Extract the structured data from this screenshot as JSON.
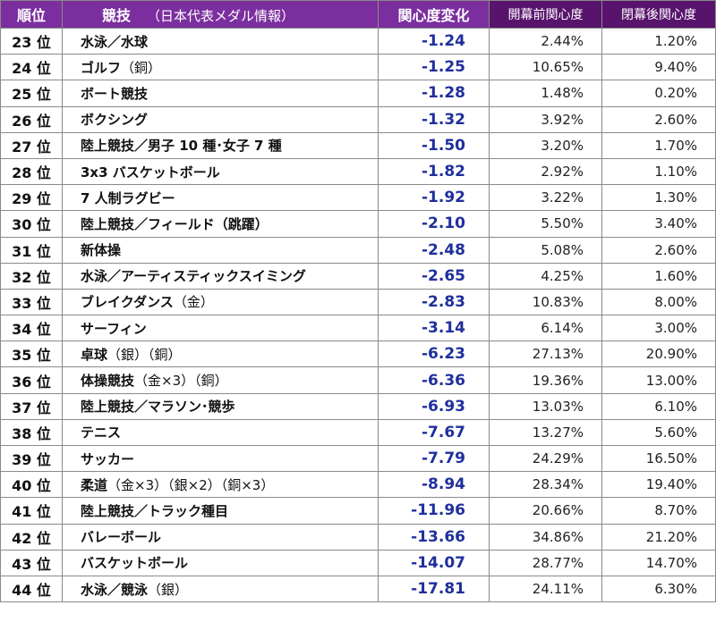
{
  "header": {
    "rank": "順位",
    "sport": "競技",
    "sport_note": "（日本代表メダル情報）",
    "change": "関心度変化",
    "before": "開幕前関心度",
    "after": "閉幕後関心度"
  },
  "colors": {
    "header_purple": "#7b2f9e",
    "header_dark_purple": "#58146c",
    "change_blue": "#1f2f9c"
  },
  "rows": [
    {
      "rank": "23 位",
      "sport": "水泳／水球",
      "medal": "",
      "change": "-1.24",
      "before": "2.44%",
      "after": "1.20%"
    },
    {
      "rank": "24 位",
      "sport": "ゴルフ",
      "medal": "（銅）",
      "change": "-1.25",
      "before": "10.65%",
      "after": "9.40%"
    },
    {
      "rank": "25 位",
      "sport": "ボート競技",
      "medal": "",
      "change": "-1.28",
      "before": "1.48%",
      "after": "0.20%"
    },
    {
      "rank": "26 位",
      "sport": "ボクシング",
      "medal": "",
      "change": "-1.32",
      "before": "3.92%",
      "after": "2.60%"
    },
    {
      "rank": "27 位",
      "sport": "陸上競技／男子 10 種･女子 7 種",
      "medal": "",
      "change": "-1.50",
      "before": "3.20%",
      "after": "1.70%"
    },
    {
      "rank": "28 位",
      "sport": "3x3 バスケットボール",
      "medal": "",
      "change": "-1.82",
      "before": "2.92%",
      "after": "1.10%"
    },
    {
      "rank": "29 位",
      "sport": "7 人制ラグビー",
      "medal": "",
      "change": "-1.92",
      "before": "3.22%",
      "after": "1.30%"
    },
    {
      "rank": "30 位",
      "sport": "陸上競技／フィールド（跳躍）",
      "medal": "",
      "change": "-2.10",
      "before": "5.50%",
      "after": "3.40%"
    },
    {
      "rank": "31 位",
      "sport": "新体操",
      "medal": "",
      "change": "-2.48",
      "before": "5.08%",
      "after": "2.60%"
    },
    {
      "rank": "32 位",
      "sport": "水泳／アーティスティックスイミング",
      "medal": "",
      "change": "-2.65",
      "before": "4.25%",
      "after": "1.60%"
    },
    {
      "rank": "33 位",
      "sport": "ブレイクダンス",
      "medal": "（金）",
      "change": "-2.83",
      "before": "10.83%",
      "after": "8.00%"
    },
    {
      "rank": "34 位",
      "sport": "サーフィン",
      "medal": "",
      "change": "-3.14",
      "before": "6.14%",
      "after": "3.00%"
    },
    {
      "rank": "35 位",
      "sport": "卓球",
      "medal": "（銀）（銅）",
      "change": "-6.23",
      "before": "27.13%",
      "after": "20.90%"
    },
    {
      "rank": "36 位",
      "sport": "体操競技",
      "medal": "（金×3）（銅）",
      "change": "-6.36",
      "before": "19.36%",
      "after": "13.00%"
    },
    {
      "rank": "37 位",
      "sport": "陸上競技／マラソン･競歩",
      "medal": "",
      "change": "-6.93",
      "before": "13.03%",
      "after": "6.10%"
    },
    {
      "rank": "38 位",
      "sport": "テニス",
      "medal": "",
      "change": "-7.67",
      "before": "13.27%",
      "after": "5.60%"
    },
    {
      "rank": "39 位",
      "sport": "サッカー",
      "medal": "",
      "change": "-7.79",
      "before": "24.29%",
      "after": "16.50%"
    },
    {
      "rank": "40 位",
      "sport": "柔道",
      "medal": "（金×3）（銀×2）（銅×3）",
      "change": "-8.94",
      "before": "28.34%",
      "after": "19.40%"
    },
    {
      "rank": "41 位",
      "sport": "陸上競技／トラック種目",
      "medal": "",
      "change": "-11.96",
      "before": "20.66%",
      "after": "8.70%"
    },
    {
      "rank": "42 位",
      "sport": "バレーボール",
      "medal": "",
      "change": "-13.66",
      "before": "34.86%",
      "after": "21.20%"
    },
    {
      "rank": "43 位",
      "sport": "バスケットボール",
      "medal": "",
      "change": "-14.07",
      "before": "28.77%",
      "after": "14.70%"
    },
    {
      "rank": "44 位",
      "sport": "水泳／競泳",
      "medal": "（銀）",
      "change": "-17.81",
      "before": "24.11%",
      "after": "6.30%"
    }
  ]
}
